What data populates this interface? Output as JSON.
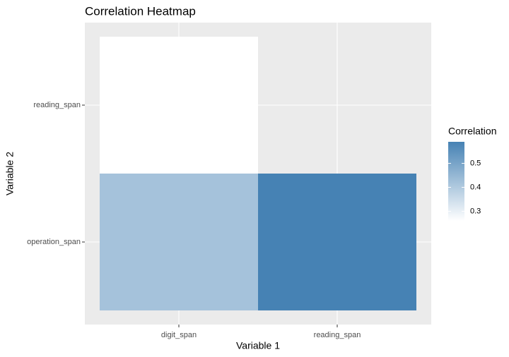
{
  "chart_data": {
    "type": "heatmap",
    "title": "Correlation Heatmap",
    "x_label": "Variable 1",
    "y_label": "Variable 2",
    "x_categories": [
      "digit_span",
      "reading_span"
    ],
    "y_categories": [
      "operation_span",
      "reading_span"
    ],
    "z": [
      [
        0.42,
        0.59
      ],
      [
        0.26,
        null
      ]
    ],
    "legend_title": "Correlation",
    "zlim": [
      0.26,
      0.59
    ],
    "zticks": [
      0.3,
      0.4,
      0.5
    ],
    "low_color": "#ffffff",
    "high_color": "#4682b4",
    "panel_color": "#ebebeb",
    "grid": true
  }
}
